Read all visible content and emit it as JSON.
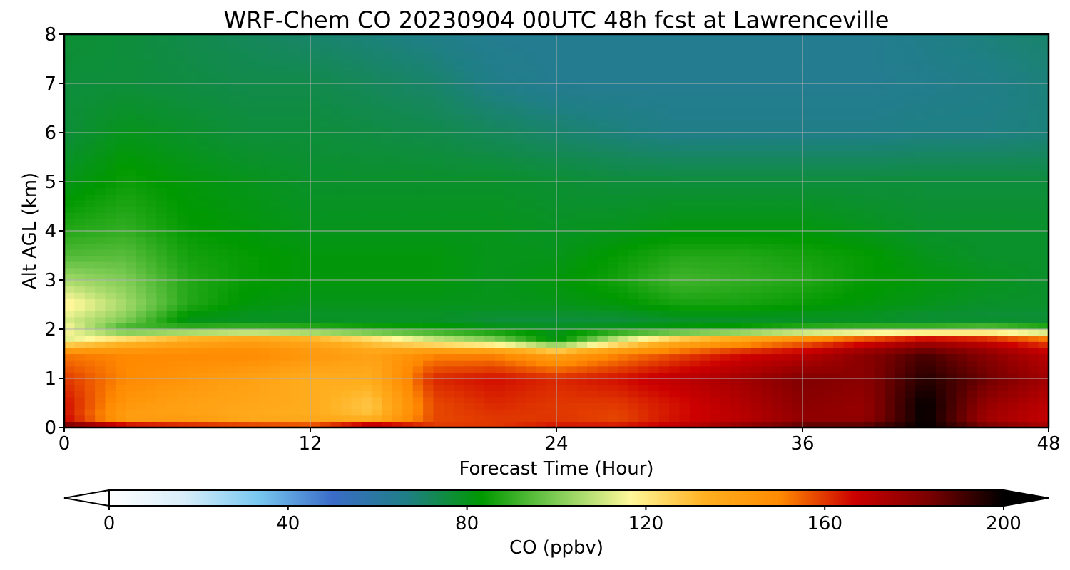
{
  "chart_data": {
    "type": "heatmap",
    "title": "WRF-Chem CO  20230904 00UTC 48h fcst at Lawrenceville",
    "xlabel": "Forecast Time (Hour)",
    "ylabel": "Alt AGL (km)",
    "xlim": [
      0,
      48
    ],
    "ylim": [
      0,
      8
    ],
    "xticks": [
      "0",
      "12",
      "24",
      "36",
      "48"
    ],
    "yticks": [
      "0",
      "1",
      "2",
      "3",
      "4",
      "5",
      "6",
      "7",
      "8"
    ],
    "grid": true,
    "x": [
      0,
      3,
      6,
      9,
      12,
      15,
      18,
      21,
      24,
      27,
      30,
      33,
      36,
      39,
      42,
      45,
      48
    ],
    "y": [
      0,
      0.2,
      0.5,
      1.0,
      1.5,
      1.8,
      2.0,
      2.2,
      2.5,
      3.0,
      3.5,
      4.0,
      5.0,
      6.0,
      7.0,
      8.0
    ],
    "z": [
      [
        190,
        175,
        170,
        168,
        165,
        185,
        160,
        160,
        165,
        165,
        170,
        180,
        190,
        190,
        200,
        185,
        175
      ],
      [
        165,
        140,
        140,
        135,
        135,
        130,
        158,
        160,
        160,
        158,
        165,
        170,
        178,
        178,
        200,
        175,
        168
      ],
      [
        165,
        145,
        140,
        138,
        135,
        128,
        158,
        162,
        160,
        160,
        165,
        172,
        180,
        178,
        200,
        178,
        170
      ],
      [
        160,
        150,
        145,
        140,
        135,
        135,
        162,
        165,
        162,
        165,
        170,
        175,
        182,
        180,
        195,
        185,
        175
      ],
      [
        152,
        150,
        150,
        150,
        145,
        140,
        150,
        150,
        140,
        150,
        158,
        165,
        170,
        180,
        190,
        180,
        170
      ],
      [
        112,
        125,
        135,
        140,
        135,
        125,
        110,
        100,
        80,
        110,
        130,
        140,
        150,
        160,
        170,
        165,
        155
      ],
      [
        118,
        90,
        92,
        95,
        92,
        88,
        86,
        82,
        80,
        82,
        84,
        86,
        92,
        95,
        96,
        100,
        92
      ],
      [
        112,
        100,
        80,
        78,
        78,
        78,
        78,
        76,
        76,
        76,
        78,
        78,
        78,
        78,
        76,
        76,
        76
      ],
      [
        120,
        105,
        88,
        82,
        80,
        80,
        80,
        80,
        80,
        82,
        86,
        86,
        84,
        82,
        80,
        78,
        78
      ],
      [
        105,
        100,
        88,
        84,
        82,
        82,
        82,
        80,
        82,
        86,
        92,
        90,
        88,
        84,
        82,
        80,
        78
      ],
      [
        94,
        95,
        86,
        84,
        82,
        82,
        82,
        80,
        80,
        84,
        88,
        88,
        86,
        84,
        80,
        78,
        78
      ],
      [
        88,
        90,
        84,
        82,
        80,
        80,
        80,
        80,
        79,
        80,
        82,
        82,
        82,
        80,
        78,
        78,
        78
      ],
      [
        80,
        85,
        82,
        80,
        78,
        78,
        78,
        78,
        77,
        76,
        76,
        76,
        76,
        76,
        76,
        76,
        76
      ],
      [
        76,
        80,
        78,
        76,
        76,
        75,
        74,
        72,
        70,
        68,
        66,
        66,
        66,
        66,
        67,
        67,
        68
      ],
      [
        76,
        76,
        75,
        74,
        74,
        72,
        70,
        66,
        64,
        64,
        64,
        64,
        64,
        64,
        65,
        66,
        68
      ],
      [
        77,
        76,
        74,
        72,
        70,
        68,
        66,
        64,
        64,
        64,
        64,
        64,
        64,
        64,
        66,
        68,
        70
      ]
    ],
    "colorbar": {
      "label": "CO  (ppbv)",
      "ticks": [
        "0",
        "40",
        "80",
        "120",
        "160",
        "200"
      ],
      "vmin": 0,
      "vmax": 200,
      "extend": "both",
      "colors": [
        "#ffffff",
        "#d8eefa",
        "#78c8f0",
        "#3a6cc8",
        "#1f7f85",
        "#009900",
        "#7fcc55",
        "#fff89a",
        "#ffb020",
        "#ff8a00",
        "#cc0000",
        "#7a0000",
        "#000000"
      ]
    }
  }
}
